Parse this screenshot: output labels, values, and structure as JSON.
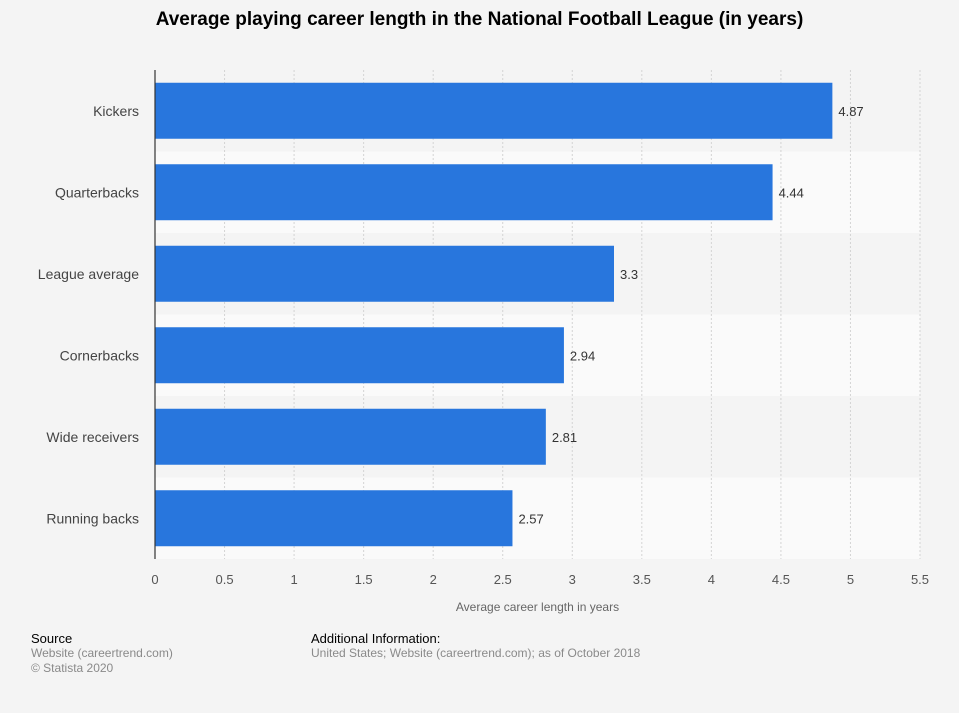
{
  "chart_data": {
    "type": "bar",
    "orientation": "horizontal",
    "title": "Average playing career length in the National Football League (in years)",
    "xlabel": "Average career length in years",
    "ylabel": "",
    "categories": [
      "Kickers",
      "Quarterbacks",
      "League average",
      "Cornerbacks",
      "Wide receivers",
      "Running backs"
    ],
    "values": [
      4.87,
      4.44,
      3.3,
      2.94,
      2.81,
      2.57
    ],
    "value_labels": [
      "4.87",
      "4.44",
      "3.3",
      "2.94",
      "2.81",
      "2.57"
    ],
    "xlim": [
      0,
      5.5
    ],
    "ticks": [
      0,
      0.5,
      1,
      1.5,
      2,
      2.5,
      3,
      3.5,
      4,
      4.5,
      5,
      5.5
    ],
    "tick_labels": [
      "0",
      "0.5",
      "1",
      "1.5",
      "2",
      "2.5",
      "3",
      "3.5",
      "4",
      "4.5",
      "5",
      "5.5"
    ],
    "grid": true,
    "legend": "none",
    "bar_color": "#2876dd"
  },
  "footer": {
    "source_heading": "Source",
    "source_lines": [
      "Website (careertrend.com)",
      "© Statista 2020"
    ],
    "info_heading": "Additional Information:",
    "info_lines": [
      "United States; Website (careertrend.com); as of October 2018"
    ]
  }
}
